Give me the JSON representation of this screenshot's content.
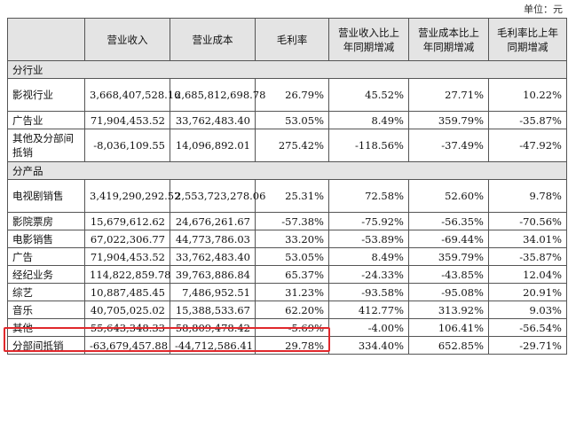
{
  "unit_label": "单位：元",
  "headers": [
    "",
    "营业收入",
    "营业成本",
    "毛利率",
    "营业收入比上年同期增减",
    "营业成本比上年同期增减",
    "毛利率比上年同期增减"
  ],
  "sections": [
    {
      "title": "分行业",
      "rows": [
        {
          "label": "影视行业",
          "revenue": "3,668,407,528.16",
          "cost": "2,685,812,698.78",
          "margin": "26.79%",
          "rev_change": "45.52%",
          "cost_change": "27.71%",
          "margin_change": "10.22%"
        },
        {
          "label": "广告业",
          "revenue": "71,904,453.52",
          "cost": "33,762,483.40",
          "margin": "53.05%",
          "rev_change": "8.49%",
          "cost_change": "359.79%",
          "margin_change": "-35.87%"
        },
        {
          "label": "其他及分部间抵销",
          "revenue": "-8,036,109.55",
          "cost": "14,096,892.01",
          "margin": "275.42%",
          "rev_change": "-118.56%",
          "cost_change": "-37.49%",
          "margin_change": "-47.92%"
        }
      ]
    },
    {
      "title": "分产品",
      "rows": [
        {
          "label": "电视剧销售",
          "revenue": "3,419,290,292.52",
          "cost": "2,553,723,278.06",
          "margin": "25.31%",
          "rev_change": "72.58%",
          "cost_change": "52.60%",
          "margin_change": "9.78%"
        },
        {
          "label": "影院票房",
          "revenue": "15,679,612.62",
          "cost": "24,676,261.67",
          "margin": "-57.38%",
          "rev_change": "-75.92%",
          "cost_change": "-56.35%",
          "margin_change": "-70.56%"
        },
        {
          "label": "电影销售",
          "revenue": "67,022,306.77",
          "cost": "44,773,786.03",
          "margin": "33.20%",
          "rev_change": "-53.89%",
          "cost_change": "-69.44%",
          "margin_change": "34.01%"
        },
        {
          "label": "广告",
          "revenue": "71,904,453.52",
          "cost": "33,762,483.40",
          "margin": "53.05%",
          "rev_change": "8.49%",
          "cost_change": "359.79%",
          "margin_change": "-35.87%"
        },
        {
          "label": "经纪业务",
          "revenue": "114,822,859.78",
          "cost": "39,763,886.84",
          "margin": "65.37%",
          "rev_change": "-24.33%",
          "cost_change": "-43.85%",
          "margin_change": "12.04%"
        },
        {
          "label": "综艺",
          "revenue": "10,887,485.45",
          "cost": "7,486,952.51",
          "margin": "31.23%",
          "rev_change": "-93.58%",
          "cost_change": "-95.08%",
          "margin_change": "20.91%"
        },
        {
          "label": "音乐",
          "revenue": "40,705,025.02",
          "cost": "15,388,533.67",
          "margin": "62.20%",
          "rev_change": "412.77%",
          "cost_change": "313.92%",
          "margin_change": "9.03%"
        },
        {
          "label": "其他",
          "revenue": "55,643,348.33",
          "cost": "58,809,478.42",
          "margin": "-5.69%",
          "rev_change": "-4.00%",
          "cost_change": "106.41%",
          "margin_change": "-56.54%"
        },
        {
          "label": "分部间抵销",
          "revenue": "-63,679,457.88",
          "cost": "-44,712,586.41",
          "margin": "29.78%",
          "rev_change": "334.40%",
          "cost_change": "652.85%",
          "margin_change": "-29.71%"
        }
      ]
    }
  ]
}
